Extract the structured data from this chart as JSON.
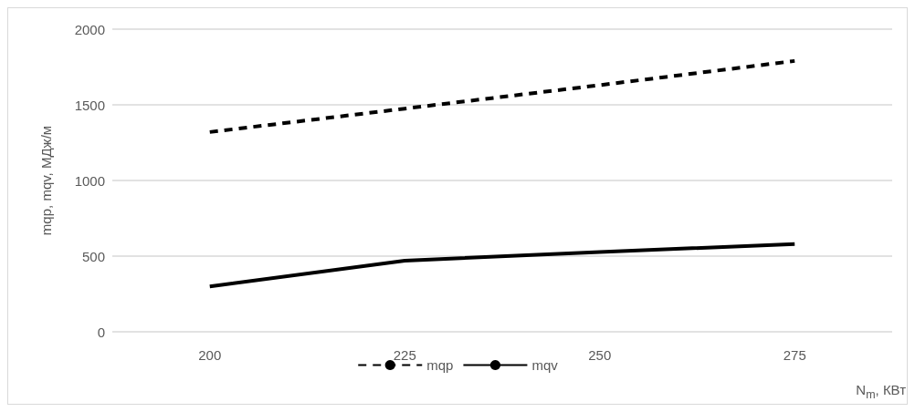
{
  "chart_data": {
    "type": "line",
    "xlabel": "N$_{m}$, КВт",
    "ylabel": "mqp, mqv, МДж/м",
    "categories": [
      "200",
      "225",
      "250",
      "275"
    ],
    "series": [
      {
        "name": "mqp",
        "color": "#000000",
        "line_style": "dashed",
        "values": [
          1320,
          1475,
          1630,
          1790
        ]
      },
      {
        "name": "mqv",
        "color": "#000000",
        "line_style": "solid",
        "values": [
          300,
          470,
          527,
          580
        ]
      }
    ],
    "ylim": [
      0,
      2000
    ],
    "yticks": [
      0,
      500,
      1000,
      1500,
      2000
    ],
    "grid": "y",
    "legend": "bottom",
    "marker": "none"
  }
}
